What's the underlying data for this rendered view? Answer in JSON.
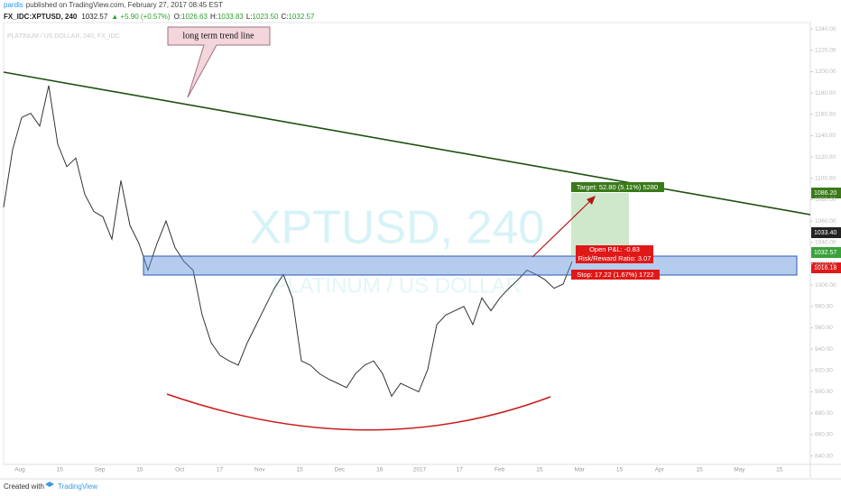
{
  "header": {
    "author": "pardis",
    "published": "published on TradingView.com, February 27, 2017 08:45 EST",
    "symbol": "FX_IDC:XPTUSD, 240",
    "last": "1032.57",
    "change": "▲ +5.90 (+0.57%)",
    "ohlc": [
      {
        "k": "O:",
        "v": "1026.63"
      },
      {
        "k": "H:",
        "v": "1033.83"
      },
      {
        "k": "L:",
        "v": "1023.50"
      },
      {
        "k": "C:",
        "v": "1032.57"
      }
    ]
  },
  "chart_data": {
    "type": "line",
    "subtitle": "PLATINUM / US DOLLAR, 240, FX_IDC",
    "color": "#333333",
    "values": [
      1073,
      1127,
      1157,
      1161,
      1149,
      1187,
      1132,
      1111,
      1119,
      1085,
      1069,
      1064,
      1043,
      1098,
      1056,
      1039,
      1014,
      1039,
      1060,
      1035,
      1022,
      1014,
      972,
      946,
      934,
      929,
      925,
      946,
      963,
      980,
      997,
      1010,
      988,
      929,
      925,
      917,
      912,
      908,
      904,
      917,
      925,
      929,
      917,
      896,
      908,
      904,
      900,
      921,
      963,
      972,
      976,
      980,
      963,
      988,
      976,
      988,
      997,
      1005,
      1014,
      1010,
      1005,
      997,
      1001,
      1022
    ],
    "ylim": [
      832,
      1246
    ],
    "yticks": [
      {
        "value": 840,
        "label": "840.00"
      },
      {
        "value": 860,
        "label": "860.00"
      },
      {
        "value": 880,
        "label": "880.00"
      },
      {
        "value": 900,
        "label": "900.00"
      },
      {
        "value": 920,
        "label": "920.00"
      },
      {
        "value": 940,
        "label": "940.00"
      },
      {
        "value": 960,
        "label": "960.00"
      },
      {
        "value": 980,
        "label": "980.00"
      },
      {
        "value": 1000,
        "label": "1000.00"
      },
      {
        "value": 1020,
        "label": "1020.00"
      },
      {
        "value": 1040,
        "label": "1040.00"
      },
      {
        "value": 1060,
        "label": "1060.00"
      },
      {
        "value": 1080,
        "label": "1080.00"
      },
      {
        "value": 1100,
        "label": "1100.00"
      },
      {
        "value": 1120,
        "label": "1120.00"
      },
      {
        "value": 1140,
        "label": "1140.00"
      },
      {
        "value": 1160,
        "label": "1160.00"
      },
      {
        "value": 1180,
        "label": "1180.00"
      },
      {
        "value": 1200,
        "label": "1200.00"
      },
      {
        "value": 1220,
        "label": "1220.00"
      },
      {
        "value": 1240,
        "label": "1240.00"
      }
    ],
    "xtick_labels": [
      "Aug",
      "15",
      "Sep",
      "15",
      "Oct",
      "17",
      "Nov",
      "15",
      "Dec",
      "16",
      "2017",
      "17",
      "Feb",
      "15",
      "Mar",
      "15",
      "Apr",
      "15",
      "May",
      "15"
    ],
    "grid": false,
    "watermark": "XPTUSD, 240",
    "watermark_sub": "PLATINUM / US DOLLAR",
    "annotations": {
      "callout": "long term trend line",
      "target": "Target: 52.80 (5.11%) 5280",
      "pnl": "Open P&L: -0.83",
      "rr": "Risk/Reward Ratio: 3.07",
      "stop": "Stop: 17.22 (1.67%) 1722"
    },
    "price_labels": [
      "1086.20",
      "1033.40",
      "1032.57",
      "1016.18"
    ]
  },
  "footer": {
    "created": "Created with",
    "brand": "TradingView"
  }
}
